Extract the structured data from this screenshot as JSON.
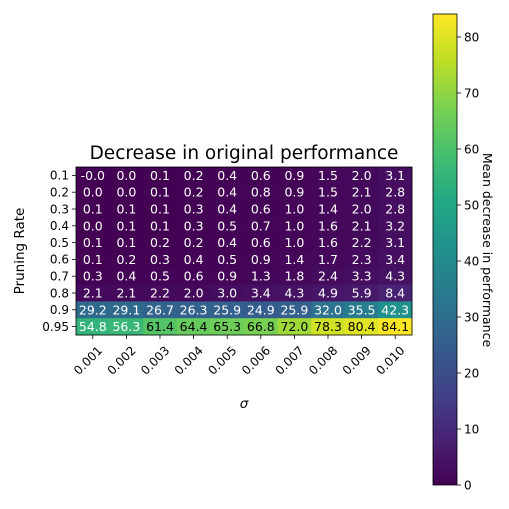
{
  "chart_data": {
    "type": "heatmap",
    "title": "Decrease in original performance",
    "xlabel": "σ",
    "ylabel": "Pruning Rate",
    "x_categories": [
      "0.001",
      "0.002",
      "0.003",
      "0.004",
      "0.005",
      "0.006",
      "0.007",
      "0.008",
      "0.009",
      "0.010"
    ],
    "y_categories": [
      "0.1",
      "0.2",
      "0.3",
      "0.4",
      "0.5",
      "0.6",
      "0.7",
      "0.8",
      "0.9",
      "0.95"
    ],
    "values": [
      [
        -0.0,
        0.0,
        0.1,
        0.2,
        0.4,
        0.6,
        0.9,
        1.5,
        2.0,
        3.1
      ],
      [
        0.0,
        0.0,
        0.1,
        0.2,
        0.4,
        0.8,
        0.9,
        1.5,
        2.1,
        2.8
      ],
      [
        0.1,
        0.1,
        0.1,
        0.3,
        0.4,
        0.6,
        1.0,
        1.4,
        2.0,
        2.8
      ],
      [
        0.0,
        0.1,
        0.1,
        0.3,
        0.5,
        0.7,
        1.0,
        1.6,
        2.1,
        3.2
      ],
      [
        0.1,
        0.1,
        0.2,
        0.2,
        0.4,
        0.6,
        1.0,
        1.6,
        2.2,
        3.1
      ],
      [
        0.1,
        0.2,
        0.3,
        0.4,
        0.5,
        0.9,
        1.4,
        1.7,
        2.3,
        3.4
      ],
      [
        0.3,
        0.4,
        0.5,
        0.6,
        0.9,
        1.3,
        1.8,
        2.4,
        3.3,
        4.3
      ],
      [
        2.1,
        2.1,
        2.2,
        2.0,
        3.0,
        3.4,
        4.3,
        4.9,
        5.9,
        8.4
      ],
      [
        29.2,
        29.1,
        26.7,
        26.3,
        25.9,
        24.9,
        25.9,
        32.0,
        35.5,
        42.3
      ],
      [
        54.8,
        56.3,
        61.4,
        64.4,
        65.3,
        66.8,
        72.0,
        78.3,
        80.4,
        84.1
      ]
    ],
    "labels": [
      [
        "-0.0",
        "0.0",
        "0.1",
        "0.2",
        "0.4",
        "0.6",
        "0.9",
        "1.5",
        "2.0",
        "3.1"
      ],
      [
        "0.0",
        "0.0",
        "0.1",
        "0.2",
        "0.4",
        "0.8",
        "0.9",
        "1.5",
        "2.1",
        "2.8"
      ],
      [
        "0.1",
        "0.1",
        "0.1",
        "0.3",
        "0.4",
        "0.6",
        "1.0",
        "1.4",
        "2.0",
        "2.8"
      ],
      [
        "0.0",
        "0.1",
        "0.1",
        "0.3",
        "0.5",
        "0.7",
        "1.0",
        "1.6",
        "2.1",
        "3.2"
      ],
      [
        "0.1",
        "0.1",
        "0.2",
        "0.2",
        "0.4",
        "0.6",
        "1.0",
        "1.6",
        "2.2",
        "3.1"
      ],
      [
        "0.1",
        "0.2",
        "0.3",
        "0.4",
        "0.5",
        "0.9",
        "1.4",
        "1.7",
        "2.3",
        "3.4"
      ],
      [
        "0.3",
        "0.4",
        "0.5",
        "0.6",
        "0.9",
        "1.3",
        "1.8",
        "2.4",
        "3.3",
        "4.3"
      ],
      [
        "2.1",
        "2.1",
        "2.2",
        "2.0",
        "3.0",
        "3.4",
        "4.3",
        "4.9",
        "5.9",
        "8.4"
      ],
      [
        "29.2",
        "29.1",
        "26.7",
        "26.3",
        "25.9",
        "24.9",
        "25.9",
        "32.0",
        "35.5",
        "42.3"
      ],
      [
        "54.8",
        "56.3",
        "61.4",
        "64.4",
        "65.3",
        "66.8",
        "72.0",
        "78.3",
        "80.4",
        "84.1"
      ]
    ],
    "colormap": "viridis",
    "value_range": [
      0,
      84.1
    ],
    "colorbar": {
      "label": "Mean decrease in performance",
      "ticks": [
        0,
        10,
        20,
        30,
        40,
        50,
        60,
        70,
        80
      ],
      "tick_labels": [
        "0",
        "10",
        "20",
        "30",
        "40",
        "50",
        "60",
        "70",
        "80"
      ]
    }
  }
}
